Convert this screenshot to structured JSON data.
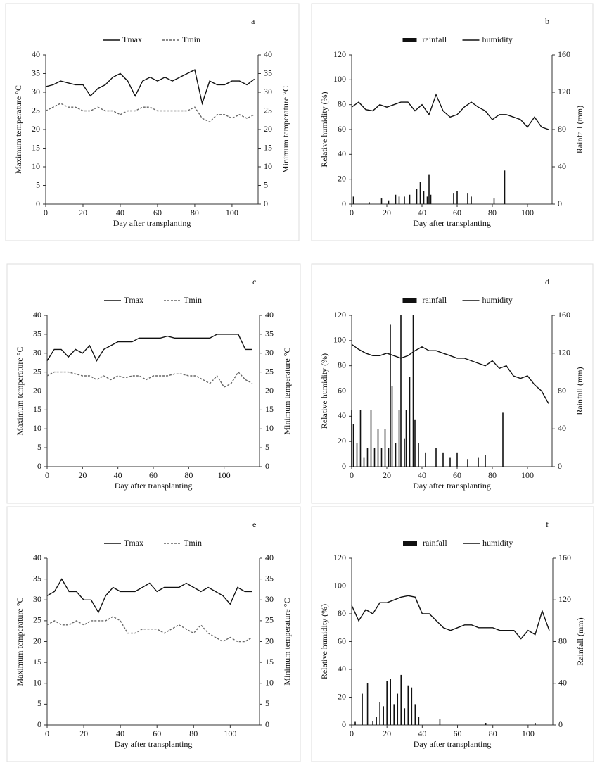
{
  "chart_data": [
    {
      "type": "line",
      "label": "a",
      "xlabel": "Day after transplanting",
      "ylabel": "Maximum temperature °C",
      "y2label": "Minimum temperature °C",
      "xlim": [
        0,
        114
      ],
      "xticks": [
        0,
        20,
        40,
        60,
        80,
        100
      ],
      "ylim": [
        0,
        40
      ],
      "yticks": [
        0,
        5,
        10,
        15,
        20,
        25,
        30,
        35,
        40
      ],
      "y2lim": [
        0,
        40
      ],
      "y2ticks": [
        0,
        5,
        10,
        15,
        20,
        25,
        30,
        35,
        40
      ],
      "series": [
        {
          "name": "Tmax",
          "kind": "line",
          "color": "#111",
          "dash": false,
          "axis": "y",
          "x": [
            0,
            4,
            8,
            12,
            16,
            20,
            24,
            28,
            32,
            36,
            40,
            44,
            48,
            52,
            56,
            60,
            64,
            68,
            72,
            76,
            80,
            84,
            88,
            92,
            96,
            100,
            104,
            108,
            112
          ],
          "values": [
            31.5,
            32,
            33,
            32.5,
            32,
            32,
            29,
            31,
            32,
            34,
            35,
            33,
            29,
            33,
            34,
            33,
            34,
            33,
            34,
            35,
            36,
            27,
            33,
            32,
            32,
            33,
            33,
            32,
            33.5
          ]
        },
        {
          "name": "Tmin",
          "kind": "line",
          "color": "#666",
          "dash": true,
          "axis": "y2",
          "x": [
            0,
            4,
            8,
            12,
            16,
            20,
            24,
            28,
            32,
            36,
            40,
            44,
            48,
            52,
            56,
            60,
            64,
            68,
            72,
            76,
            80,
            84,
            88,
            92,
            96,
            100,
            104,
            108,
            112
          ],
          "values": [
            25,
            26,
            27,
            26,
            26,
            25,
            25,
            26,
            25,
            25,
            24,
            25,
            25,
            26,
            26,
            25,
            25,
            25,
            25,
            25,
            26,
            23,
            22,
            24,
            24,
            23,
            24,
            23,
            24
          ]
        }
      ]
    },
    {
      "type": "combo",
      "label": "b",
      "xlabel": "Day after transplanting",
      "ylabel": "Relative humidity (%)",
      "y2label": "Rainfall (mm)",
      "xlim": [
        0,
        114
      ],
      "xticks": [
        0,
        20,
        40,
        60,
        80,
        100
      ],
      "ylim": [
        0,
        120
      ],
      "yticks": [
        0,
        20,
        40,
        60,
        80,
        100,
        120
      ],
      "y2lim": [
        0,
        160
      ],
      "y2ticks": [
        0,
        40,
        80,
        120,
        160
      ],
      "series": [
        {
          "name": "rainfall",
          "kind": "bar",
          "color": "#111",
          "dash": false,
          "axis": "y2",
          "x": [
            1,
            10,
            17,
            21,
            25,
            27,
            30,
            33,
            37,
            39,
            41,
            43,
            44,
            45,
            58,
            60,
            66,
            68,
            81,
            87
          ],
          "values": [
            8,
            2,
            6,
            4,
            10,
            8,
            8,
            10,
            16,
            24,
            14,
            8,
            32,
            10,
            12,
            14,
            12,
            8,
            6,
            36
          ]
        },
        {
          "name": "humidity",
          "kind": "line",
          "color": "#111",
          "dash": false,
          "axis": "y",
          "x": [
            0,
            4,
            8,
            12,
            16,
            20,
            24,
            28,
            32,
            36,
            40,
            44,
            48,
            52,
            56,
            60,
            64,
            68,
            72,
            76,
            80,
            84,
            88,
            92,
            96,
            100,
            104,
            108,
            112
          ],
          "values": [
            78,
            82,
            76,
            75,
            80,
            78,
            80,
            82,
            82,
            75,
            80,
            72,
            88,
            75,
            70,
            72,
            78,
            82,
            78,
            75,
            68,
            72,
            72,
            70,
            68,
            62,
            70,
            62,
            60
          ]
        }
      ]
    },
    {
      "type": "line",
      "label": "c",
      "xlabel": "Day after transplanting",
      "ylabel": "Maximum temperature °C",
      "y2label": "Minimum temperature °C",
      "xlim": [
        0,
        120
      ],
      "xticks": [
        0,
        20,
        40,
        60,
        80,
        100
      ],
      "ylim": [
        0,
        40
      ],
      "yticks": [
        0,
        5,
        10,
        15,
        20,
        25,
        30,
        35,
        40
      ],
      "y2lim": [
        0,
        40
      ],
      "y2ticks": [
        0,
        5,
        10,
        15,
        20,
        25,
        30,
        35,
        40
      ],
      "series": [
        {
          "name": "Tmax",
          "kind": "line",
          "color": "#111",
          "dash": false,
          "axis": "y",
          "x": [
            0,
            4,
            8,
            12,
            16,
            20,
            24,
            28,
            32,
            36,
            40,
            44,
            48,
            52,
            56,
            60,
            64,
            68,
            72,
            76,
            80,
            84,
            88,
            92,
            96,
            100,
            104,
            108,
            112,
            116
          ],
          "values": [
            28,
            31,
            31,
            29,
            31,
            30,
            32,
            28,
            31,
            32,
            33,
            33,
            33,
            34,
            34,
            34,
            34,
            34.5,
            34,
            34,
            34,
            34,
            34,
            34,
            35,
            35,
            35,
            35,
            31,
            31
          ]
        },
        {
          "name": "Tmin",
          "kind": "line",
          "color": "#666",
          "dash": true,
          "axis": "y2",
          "x": [
            0,
            4,
            8,
            12,
            16,
            20,
            24,
            28,
            32,
            36,
            40,
            44,
            48,
            52,
            56,
            60,
            64,
            68,
            72,
            76,
            80,
            84,
            88,
            92,
            96,
            100,
            104,
            108,
            112,
            116
          ],
          "values": [
            24,
            25,
            25,
            25,
            24.5,
            24,
            24,
            23,
            24,
            23,
            24,
            23.5,
            24,
            24,
            23,
            24,
            24,
            24,
            24.5,
            24.5,
            24,
            24,
            23,
            22,
            24,
            21,
            22,
            25,
            23,
            22
          ]
        }
      ]
    },
    {
      "type": "combo",
      "label": "d",
      "xlabel": "Day after transplanting",
      "ylabel": "Relative humidity (%)",
      "y2label": "Rainfall (mm)",
      "xlim": [
        0,
        114
      ],
      "xticks": [
        0,
        20,
        40,
        60,
        80,
        100
      ],
      "ylim": [
        0,
        120
      ],
      "yticks": [
        0,
        20,
        40,
        60,
        80,
        100,
        120
      ],
      "y2lim": [
        0,
        160
      ],
      "y2ticks": [
        0,
        40,
        80,
        120,
        160
      ],
      "series": [
        {
          "name": "rainfall",
          "kind": "bar",
          "color": "#111",
          "dash": false,
          "axis": "y2",
          "x": [
            0,
            1,
            3,
            5,
            7,
            9,
            11,
            13,
            15,
            17,
            19,
            21,
            22,
            23,
            25,
            27,
            28,
            30,
            31,
            33,
            35,
            36,
            38,
            42,
            48,
            52,
            56,
            60,
            66,
            72,
            76,
            86
          ],
          "values": [
            60,
            45,
            25,
            60,
            10,
            20,
            60,
            20,
            40,
            20,
            40,
            20,
            150,
            85,
            25,
            60,
            160,
            30,
            60,
            95,
            160,
            50,
            25,
            15,
            20,
            15,
            10,
            15,
            8,
            10,
            12,
            57
          ]
        },
        {
          "name": "humidity",
          "kind": "line",
          "color": "#111",
          "dash": false,
          "axis": "y",
          "x": [
            0,
            4,
            8,
            12,
            16,
            20,
            24,
            28,
            32,
            36,
            40,
            44,
            48,
            52,
            56,
            60,
            64,
            68,
            72,
            76,
            80,
            84,
            88,
            92,
            96,
            100,
            104,
            108,
            112
          ],
          "values": [
            97,
            93,
            90,
            88,
            88,
            90,
            88,
            86,
            88,
            92,
            95,
            92,
            92,
            90,
            88,
            86,
            86,
            84,
            82,
            80,
            84,
            78,
            80,
            72,
            70,
            72,
            65,
            60,
            50
          ]
        }
      ]
    },
    {
      "type": "line",
      "label": "e",
      "xlabel": "Day after transplanting",
      "ylabel": "Maximum temperature °C",
      "y2label": "Minimum temperature °C",
      "xlim": [
        0,
        116
      ],
      "xticks": [
        0,
        20,
        40,
        60,
        80,
        100
      ],
      "ylim": [
        0,
        40
      ],
      "yticks": [
        0,
        5,
        10,
        15,
        20,
        25,
        30,
        35,
        40
      ],
      "y2lim": [
        0,
        40
      ],
      "y2ticks": [
        0,
        5,
        10,
        15,
        20,
        25,
        30,
        35,
        40
      ],
      "series": [
        {
          "name": "Tmax",
          "kind": "line",
          "color": "#111",
          "dash": false,
          "axis": "y",
          "x": [
            0,
            4,
            8,
            12,
            16,
            20,
            24,
            28,
            32,
            36,
            40,
            44,
            48,
            52,
            56,
            60,
            64,
            68,
            72,
            76,
            80,
            84,
            88,
            92,
            96,
            100,
            104,
            108,
            112
          ],
          "values": [
            31,
            32,
            35,
            32,
            32,
            30,
            30,
            27,
            31,
            33,
            32,
            32,
            32,
            33,
            34,
            32,
            33,
            33,
            33,
            34,
            33,
            32,
            33,
            32,
            31,
            29,
            33,
            32,
            32
          ]
        },
        {
          "name": "Tmin",
          "kind": "line",
          "color": "#666",
          "dash": true,
          "axis": "y2",
          "x": [
            0,
            4,
            8,
            12,
            16,
            20,
            24,
            28,
            32,
            36,
            40,
            44,
            48,
            52,
            56,
            60,
            64,
            68,
            72,
            76,
            80,
            84,
            88,
            92,
            96,
            100,
            104,
            108,
            112
          ],
          "values": [
            24,
            25,
            24,
            24,
            25,
            24,
            25,
            25,
            25,
            26,
            25,
            22,
            22,
            23,
            23,
            23,
            22,
            23,
            24,
            23,
            22,
            24,
            22,
            21,
            20,
            21,
            20,
            20,
            21
          ]
        }
      ]
    },
    {
      "type": "combo",
      "label": "f",
      "xlabel": "Day after transplanting",
      "ylabel": "Relative humidity (%)",
      "y2label": "Rainfall (mm)",
      "xlim": [
        0,
        114
      ],
      "xticks": [
        0,
        20,
        40,
        60,
        80,
        100
      ],
      "ylim": [
        0,
        120
      ],
      "yticks": [
        0,
        20,
        40,
        60,
        80,
        100,
        120
      ],
      "y2lim": [
        0,
        160
      ],
      "y2ticks": [
        0,
        40,
        80,
        120,
        160
      ],
      "series": [
        {
          "name": "rainfall",
          "kind": "bar",
          "color": "#111",
          "dash": false,
          "axis": "y2",
          "x": [
            2,
            6,
            9,
            12,
            14,
            16,
            18,
            20,
            22,
            24,
            26,
            28,
            30,
            32,
            34,
            36,
            38,
            50,
            76,
            104
          ],
          "values": [
            3,
            30,
            40,
            4,
            8,
            22,
            18,
            42,
            44,
            20,
            30,
            48,
            16,
            38,
            36,
            20,
            8,
            6,
            2,
            2
          ]
        },
        {
          "name": "humidity",
          "kind": "line",
          "color": "#111",
          "dash": false,
          "axis": "y",
          "x": [
            0,
            4,
            8,
            12,
            16,
            20,
            24,
            28,
            32,
            36,
            40,
            44,
            48,
            52,
            56,
            60,
            64,
            68,
            72,
            76,
            80,
            84,
            88,
            92,
            96,
            100,
            104,
            108,
            112
          ],
          "values": [
            86,
            75,
            83,
            80,
            88,
            88,
            90,
            92,
            93,
            92,
            80,
            80,
            75,
            70,
            68,
            70,
            72,
            72,
            70,
            70,
            70,
            68,
            68,
            68,
            62,
            68,
            65,
            82,
            68
          ]
        }
      ]
    }
  ]
}
